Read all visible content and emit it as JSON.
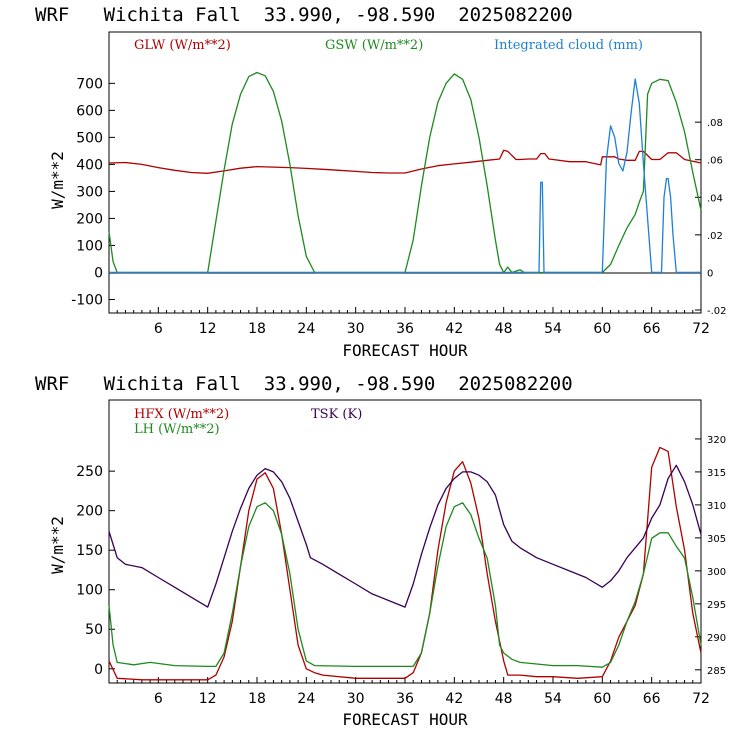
{
  "chart_data": [
    {
      "type": "line",
      "title": "WRF   Wichita Fall  33.990, -98.590  2025082200",
      "xlabel": "FORECAST HOUR",
      "ylabel": "W/m**2",
      "xlim": [
        0,
        72
      ],
      "ylim": [
        -150,
        890
      ],
      "y2lim": [
        -0.0216,
        0.128
      ],
      "xticks": [
        "6",
        "12",
        "18",
        "24",
        "30",
        "36",
        "42",
        "48",
        "54",
        "60",
        "66",
        "72"
      ],
      "yticks": [
        "-100",
        "0",
        "100",
        "200",
        "300",
        "400",
        "500",
        "600",
        "700"
      ],
      "y2ticks": [
        "-.02",
        "0",
        ".02",
        ".04",
        ".06",
        ".08"
      ],
      "series": [
        {
          "name": "GLW (W/m**2)",
          "color": "#b00000",
          "axis": "left",
          "x": [
            0,
            2,
            4,
            6,
            8,
            10,
            12,
            14,
            16,
            18,
            20,
            22,
            24,
            26,
            28,
            30,
            32,
            34,
            36,
            38,
            40,
            42,
            44,
            46,
            47.5,
            48,
            48.5,
            49.5,
            50,
            51,
            52,
            52.5,
            53,
            53.5,
            54,
            56,
            58,
            59.8,
            60,
            61.5,
            62,
            63,
            64,
            64.5,
            65,
            66,
            67,
            68,
            69,
            70,
            72
          ],
          "y": [
            405,
            407,
            400,
            388,
            378,
            370,
            367,
            376,
            386,
            392,
            390,
            388,
            385,
            382,
            378,
            374,
            370,
            368,
            368,
            383,
            395,
            402,
            408,
            415,
            420,
            452,
            448,
            418,
            418,
            420,
            420,
            440,
            440,
            420,
            418,
            410,
            410,
            398,
            428,
            428,
            420,
            415,
            415,
            448,
            448,
            418,
            418,
            443,
            443,
            418,
            405
          ]
        },
        {
          "name": "GSW (W/m**2)",
          "color": "#1e8a1e",
          "axis": "left",
          "x": [
            0,
            0.5,
            1,
            12,
            13,
            14,
            15,
            16,
            17,
            18,
            19,
            20,
            21,
            22,
            23,
            24,
            25,
            36,
            37,
            38,
            39,
            40,
            41,
            42,
            43,
            44,
            45,
            46,
            47,
            47.5,
            48,
            48.5,
            49,
            50,
            50.5,
            51,
            60,
            61,
            62,
            63,
            64,
            64.5,
            65,
            65.5,
            66,
            67,
            68,
            69,
            70,
            71,
            72
          ],
          "y": [
            150,
            40,
            0,
            0,
            190,
            380,
            550,
            660,
            725,
            740,
            728,
            670,
            560,
            400,
            210,
            60,
            0,
            0,
            120,
            320,
            500,
            630,
            700,
            735,
            715,
            640,
            500,
            320,
            120,
            30,
            0,
            20,
            0,
            10,
            0,
            0,
            0,
            30,
            100,
            165,
            215,
            260,
            300,
            660,
            700,
            715,
            710,
            630,
            520,
            370,
            230
          ]
        },
        {
          "name": "Integrated cloud (mm)",
          "color": "#1e7fd8",
          "axis": "right",
          "x": [
            0,
            52.3,
            52.5,
            52.7,
            52.9,
            60,
            60.5,
            61,
            61.5,
            62,
            62.5,
            63,
            63.5,
            64,
            64.5,
            65,
            66,
            67.2,
            67.5,
            67.8,
            68,
            68.3,
            68.6,
            69,
            69.3,
            72
          ],
          "y": [
            0,
            0,
            0.048,
            0.048,
            0,
            0,
            0.06,
            0.078,
            0.072,
            0.058,
            0.054,
            0.064,
            0.085,
            0.103,
            0.09,
            0.058,
            0,
            0,
            0.04,
            0.05,
            0.05,
            0.04,
            0.02,
            0,
            0,
            0
          ]
        }
      ]
    },
    {
      "type": "line",
      "title": "WRF   Wichita Fall  33.990, -98.590  2025082200",
      "xlabel": "FORECAST HOUR",
      "ylabel": "W/m**2",
      "xlim": [
        0,
        72
      ],
      "ylim": [
        -18,
        340
      ],
      "y2lim": [
        283.0,
        325.9
      ],
      "xticks": [
        "6",
        "12",
        "18",
        "24",
        "30",
        "36",
        "42",
        "48",
        "54",
        "60",
        "66",
        "72"
      ],
      "yticks": [
        "0",
        "50",
        "100",
        "150",
        "200",
        "250"
      ],
      "y2ticks": [
        "285",
        "290",
        "295",
        "300",
        "305",
        "310",
        "315",
        "320"
      ],
      "series": [
        {
          "name": "HFX (W/m**2)",
          "color": "#b00000",
          "axis": "left",
          "x": [
            0,
            1,
            4,
            8,
            12,
            13,
            14,
            15,
            16,
            17,
            18,
            19,
            20,
            21,
            22,
            23,
            24,
            25,
            26,
            30,
            34,
            36,
            37,
            38,
            39,
            40,
            41,
            42,
            43,
            44,
            45,
            46,
            47,
            48,
            48.5,
            50,
            52,
            54,
            57,
            60,
            61,
            62,
            64,
            65,
            66,
            67,
            68,
            69,
            70,
            71,
            72
          ],
          "y": [
            10,
            -12,
            -14,
            -14,
            -14,
            -8,
            15,
            60,
            130,
            200,
            240,
            248,
            228,
            170,
            100,
            30,
            0,
            -5,
            -8,
            -12,
            -12,
            -12,
            -5,
            20,
            70,
            150,
            210,
            250,
            262,
            235,
            190,
            120,
            60,
            10,
            -8,
            -8,
            -10,
            -10,
            -12,
            -10,
            10,
            40,
            80,
            120,
            255,
            280,
            275,
            205,
            150,
            70,
            20
          ]
        },
        {
          "name": "LH (W/m**2)",
          "color": "#1e8a1e",
          "axis": "left",
          "x": [
            0,
            0.5,
            1,
            3,
            5,
            8,
            12,
            13,
            14,
            15,
            16,
            17,
            18,
            19,
            20,
            21,
            22,
            23,
            24,
            25,
            30,
            36,
            37,
            38,
            39,
            40,
            41,
            42,
            43,
            44,
            45,
            46,
            47,
            47.5,
            48,
            49,
            50,
            52,
            54,
            57,
            60,
            61,
            62,
            63,
            64,
            65,
            66,
            67,
            68,
            69,
            70,
            71,
            72
          ],
          "y": [
            80,
            30,
            8,
            5,
            8,
            4,
            3,
            3,
            20,
            70,
            130,
            180,
            205,
            210,
            200,
            170,
            120,
            50,
            10,
            4,
            3,
            3,
            3,
            20,
            70,
            130,
            180,
            205,
            210,
            195,
            165,
            140,
            80,
            30,
            20,
            12,
            8,
            6,
            4,
            4,
            2,
            8,
            30,
            60,
            85,
            120,
            165,
            172,
            172,
            155,
            140,
            90,
            30
          ]
        },
        {
          "name": "TSK (K)",
          "color": "#3a0055",
          "axis": "right",
          "x": [
            0,
            0.5,
            1,
            2,
            4,
            6,
            8,
            10,
            12,
            13,
            14,
            15,
            16,
            17,
            18,
            19,
            20,
            21,
            22,
            23,
            24,
            24.5,
            26,
            28,
            30,
            32,
            34,
            36,
            37,
            38,
            39,
            40,
            41,
            42,
            43,
            44,
            45,
            46,
            47,
            48,
            49,
            50,
            52,
            54,
            56,
            58,
            60,
            61,
            62,
            63,
            64,
            65,
            66,
            66.5,
            67,
            68,
            69,
            70,
            71,
            72
          ],
          "y": [
            306,
            304,
            302,
            301,
            300.5,
            299,
            297.5,
            296,
            294.5,
            298,
            302,
            306,
            309.5,
            312.5,
            314.5,
            315.5,
            315,
            313.5,
            311,
            307.5,
            304,
            302,
            301,
            299.5,
            298,
            296.5,
            295.5,
            294.5,
            298,
            302.5,
            306.5,
            310,
            312.5,
            314,
            315,
            315,
            314.5,
            313.5,
            311.5,
            307,
            304.5,
            303.5,
            302,
            301,
            300,
            299,
            297.5,
            298.5,
            300,
            302,
            303.5,
            305,
            308,
            309,
            310,
            314,
            316,
            313.5,
            310,
            305.5
          ]
        }
      ]
    }
  ]
}
